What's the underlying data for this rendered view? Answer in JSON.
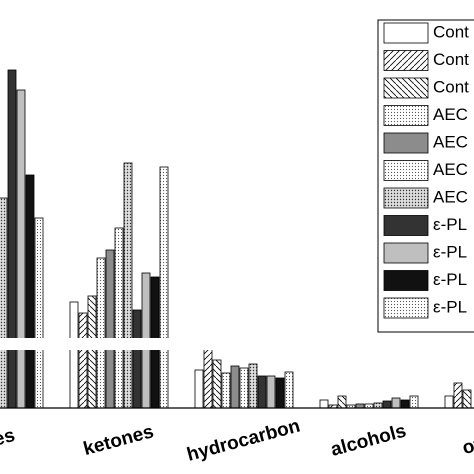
{
  "chart_data": {
    "type": "bar",
    "categories": [
      "ydes",
      "ketones",
      "hydrocarbon",
      "alcohols",
      "other c"
    ],
    "series": [
      {
        "name": "Cont",
        "color": "#ffffff",
        "values": [
          null,
          106,
          38,
          8,
          12
        ]
      },
      {
        "name": "Cont",
        "color": "#ffffff",
        "values": [
          null,
          95,
          65,
          3,
          25
        ]
      },
      {
        "name": "Cont",
        "color": "#ffffff",
        "values": [
          null,
          112,
          48,
          12,
          18
        ]
      },
      {
        "name": "AEC",
        "color": "#f2f2f2",
        "values": [
          null,
          150,
          35,
          3,
          null
        ]
      },
      {
        "name": "AEC",
        "color": "#8c8c8c",
        "values": [
          null,
          158,
          42,
          4,
          null
        ]
      },
      {
        "name": "AEC",
        "color": "#e0e0e0",
        "values": [
          200,
          180,
          40,
          4,
          null
        ]
      },
      {
        "name": "AEC",
        "color": "#a6a6a6",
        "values": [
          210,
          245,
          44,
          5,
          null
        ]
      },
      {
        "name": "ε-PL",
        "color": "#333333",
        "values": [
          338,
          98,
          32,
          7,
          null
        ]
      },
      {
        "name": "ε-PL",
        "color": "#bfbfbf",
        "values": [
          318,
          135,
          32,
          10,
          null
        ]
      },
      {
        "name": "ε-PL",
        "color": "#111111",
        "values": [
          233,
          131,
          30,
          8,
          null
        ]
      },
      {
        "name": "ε-PL",
        "color": "#e8e8e8",
        "values": [
          190,
          241,
          36,
          12,
          null
        ]
      }
    ]
  }
}
